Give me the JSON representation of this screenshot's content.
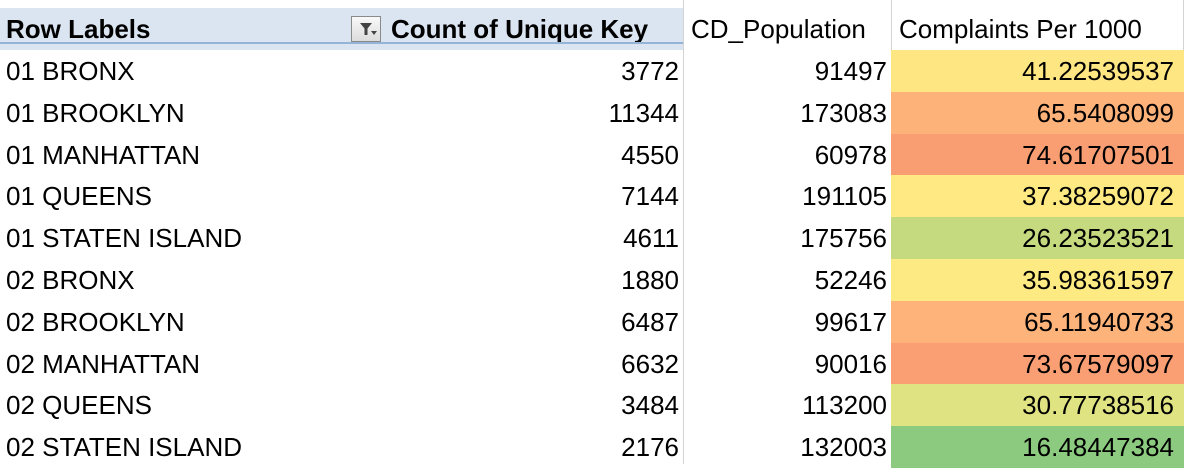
{
  "header": {
    "row_labels": "Row Labels",
    "count": "Count of Unique Key",
    "population": "CD_Population",
    "rate": "Complaints Per 1000",
    "filter_icon": "filter-dropdown-icon"
  },
  "rows": [
    {
      "label": "01 BRONX",
      "count": "3772",
      "population": "91497",
      "rate": "41.22539537",
      "rate_color": "#fee683"
    },
    {
      "label": "01 BROOKLYN",
      "count": "11344",
      "population": "173083",
      "rate": "65.5408099",
      "rate_color": "#fdb27a"
    },
    {
      "label": "01 MANHATTAN",
      "count": "4550",
      "population": "60978",
      "rate": "74.61707501",
      "rate_color": "#f99d73"
    },
    {
      "label": "01 QUEENS",
      "count": "7144",
      "population": "191105",
      "rate": "37.38259072",
      "rate_color": "#fee983"
    },
    {
      "label": "01 STATEN ISLAND",
      "count": "4611",
      "population": "175756",
      "rate": "26.23523521",
      "rate_color": "#c5da7f"
    },
    {
      "label": "02 BRONX",
      "count": "1880",
      "population": "52246",
      "rate": "35.98361597",
      "rate_color": "#feea83"
    },
    {
      "label": "02 BROOKLYN",
      "count": "6487",
      "population": "99617",
      "rate": "65.11940733",
      "rate_color": "#fdb37a"
    },
    {
      "label": "02 MANHATTAN",
      "count": "6632",
      "population": "90016",
      "rate": "73.67579097",
      "rate_color": "#fa9f74"
    },
    {
      "label": "02 QUEENS",
      "count": "3484",
      "population": "113200",
      "rate": "30.77738516",
      "rate_color": "#dfe382"
    },
    {
      "label": "02 STATEN ISLAND",
      "count": "2176",
      "population": "132003",
      "rate": "16.48447384",
      "rate_color": "#8ccb7f"
    }
  ]
}
